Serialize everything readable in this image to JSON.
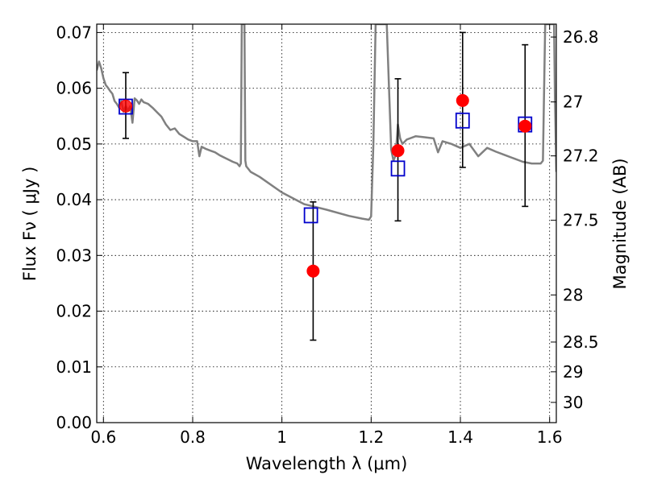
{
  "chart_data": {
    "type": "scatter",
    "title": "",
    "xlabel": "Wavelength  λ (μm)",
    "ylabel": "Flux  Fν  ( μJy )",
    "y2label": "Magnitude (AB)",
    "xlim": [
      0.585,
      1.615
    ],
    "ylim": [
      0.0,
      0.0715
    ],
    "grid": true,
    "colors": {
      "spectrum": "#808080",
      "observed": "#ff0000",
      "model": "#0000cc",
      "errorbar": "#000000"
    },
    "x_ticks": [
      0.6,
      0.8,
      1.0,
      1.2,
      1.4,
      1.6
    ],
    "x_tick_labels": [
      "0.6",
      "0.8",
      "1",
      "1.2",
      "1.4",
      "1.6"
    ],
    "y_ticks": [
      0.0,
      0.01,
      0.02,
      0.03,
      0.04,
      0.05,
      0.06,
      0.07
    ],
    "y_tick_labels": [
      "0.00",
      "0.01",
      "0.02",
      "0.03",
      "0.04",
      "0.05",
      "0.06",
      "0.07"
    ],
    "mag_ticks": [
      26.8,
      27,
      27.2,
      27.5,
      28,
      28.5,
      29,
      30
    ],
    "mag_tick_labels": [
      "26.8",
      "27",
      "27.2",
      "27.5",
      "28",
      "28.5",
      "29",
      "30"
    ],
    "observed": {
      "x": [
        0.65,
        1.07,
        1.26,
        1.405,
        1.545
      ],
      "y": [
        0.0568,
        0.0272,
        0.0488,
        0.0578,
        0.0532
      ],
      "yerr_low": [
        0.051,
        0.0148,
        0.0362,
        0.0458,
        0.0388
      ],
      "yerr_high": [
        0.0628,
        0.0396,
        0.0617,
        0.07,
        0.0678
      ]
    },
    "model_photometry": {
      "x": [
        0.65,
        1.065,
        1.26,
        1.405,
        1.545
      ],
      "y": [
        0.0567,
        0.0372,
        0.0456,
        0.0542,
        0.0535
      ]
    },
    "spectrum": {
      "x": [
        0.585,
        0.59,
        0.595,
        0.6,
        0.605,
        0.61,
        0.615,
        0.62,
        0.625,
        0.63,
        0.635,
        0.64,
        0.645,
        0.65,
        0.655,
        0.66,
        0.665,
        0.67,
        0.675,
        0.68,
        0.685,
        0.69,
        0.7,
        0.71,
        0.72,
        0.73,
        0.74,
        0.75,
        0.76,
        0.77,
        0.78,
        0.79,
        0.8,
        0.81,
        0.815,
        0.82,
        0.83,
        0.84,
        0.85,
        0.86,
        0.87,
        0.88,
        0.89,
        0.9,
        0.905,
        0.908,
        0.91,
        0.912,
        0.914,
        0.916,
        0.918,
        0.92,
        0.93,
        0.95,
        1.0,
        1.05,
        1.1,
        1.15,
        1.18,
        1.195,
        1.2,
        1.205,
        1.21,
        1.215,
        1.22,
        1.225,
        1.23,
        1.235,
        1.24,
        1.245,
        1.25,
        1.255,
        1.26,
        1.265,
        1.27,
        1.28,
        1.3,
        1.32,
        1.34,
        1.35,
        1.36,
        1.38,
        1.4,
        1.42,
        1.44,
        1.46,
        1.48,
        1.5,
        1.52,
        1.54,
        1.56,
        1.58,
        1.585,
        1.59,
        1.595,
        1.6,
        1.605,
        1.61,
        1.612,
        1.615
      ],
      "y": [
        0.0632,
        0.0648,
        0.0636,
        0.0618,
        0.0606,
        0.0601,
        0.0595,
        0.059,
        0.0577,
        0.0572,
        0.0565,
        0.0577,
        0.0558,
        0.0568,
        0.056,
        0.0568,
        0.0538,
        0.0582,
        0.0578,
        0.0572,
        0.058,
        0.0575,
        0.0572,
        0.0565,
        0.0557,
        0.0549,
        0.0535,
        0.0525,
        0.0528,
        0.0518,
        0.0513,
        0.0508,
        0.0505,
        0.0505,
        0.0478,
        0.0495,
        0.0491,
        0.0488,
        0.0485,
        0.048,
        0.0476,
        0.0472,
        0.0468,
        0.0465,
        0.046,
        0.0465,
        0.0715,
        0.0715,
        0.0715,
        0.0715,
        0.047,
        0.046,
        0.045,
        0.0441,
        0.0413,
        0.0392,
        0.0382,
        0.0371,
        0.0366,
        0.0364,
        0.037,
        0.05,
        0.0715,
        0.0715,
        0.0715,
        0.0715,
        0.0715,
        0.0715,
        0.06,
        0.049,
        0.047,
        0.048,
        0.0535,
        0.051,
        0.05,
        0.0508,
        0.0514,
        0.0512,
        0.051,
        0.0485,
        0.0505,
        0.05,
        0.0493,
        0.05,
        0.0478,
        0.0493,
        0.0486,
        0.048,
        0.0474,
        0.0468,
        0.0465,
        0.0465,
        0.047,
        0.0715,
        0.0715,
        0.0715,
        0.0715,
        0.0715,
        0.058,
        0.045
      ]
    }
  }
}
